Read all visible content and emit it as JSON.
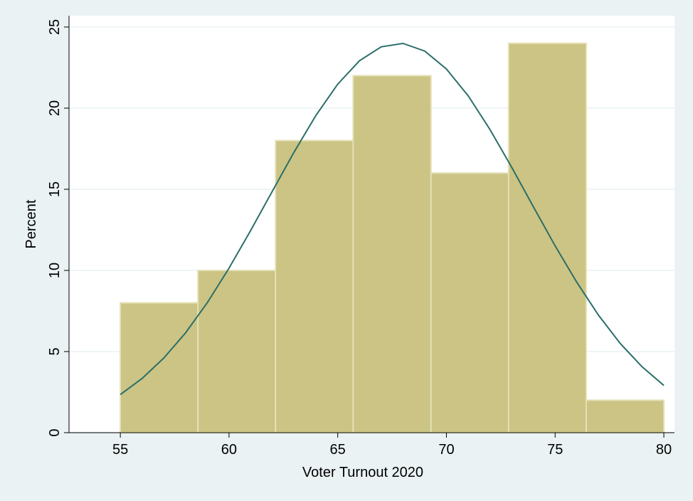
{
  "chart_data": {
    "type": "histogram",
    "x_label": "Voter Turnout 2020",
    "y_label": "Percent",
    "bins": [
      55,
      58.57,
      62.14,
      65.71,
      69.29,
      72.86,
      76.43,
      80
    ],
    "values": [
      8,
      10,
      18,
      22,
      16,
      24,
      2
    ],
    "color": "#cbc484",
    "curve": {
      "type": "line",
      "color": "#2b6e69",
      "x": [
        55,
        56,
        57,
        58,
        59,
        60,
        61,
        62,
        63,
        64,
        65,
        66,
        67,
        68,
        69,
        70,
        71,
        72,
        73,
        74,
        75,
        76,
        77,
        78,
        79,
        80
      ],
      "values": [
        2.35,
        3.34,
        4.6,
        6.15,
        8.01,
        10.14,
        12.47,
        14.9,
        17.31,
        19.56,
        21.48,
        22.92,
        23.78,
        23.99,
        23.52,
        22.41,
        20.76,
        18.69,
        16.36,
        13.92,
        11.51,
        9.26,
        7.23,
        5.49,
        4.06,
        2.91
      ]
    },
    "xlim": [
      52.64,
      80.49
    ],
    "ylim": [
      0,
      25.7
    ],
    "xticks": [
      55,
      60,
      65,
      70,
      75,
      80
    ],
    "yticks": [
      0,
      5,
      10,
      15,
      20,
      25
    ],
    "grid": true
  }
}
